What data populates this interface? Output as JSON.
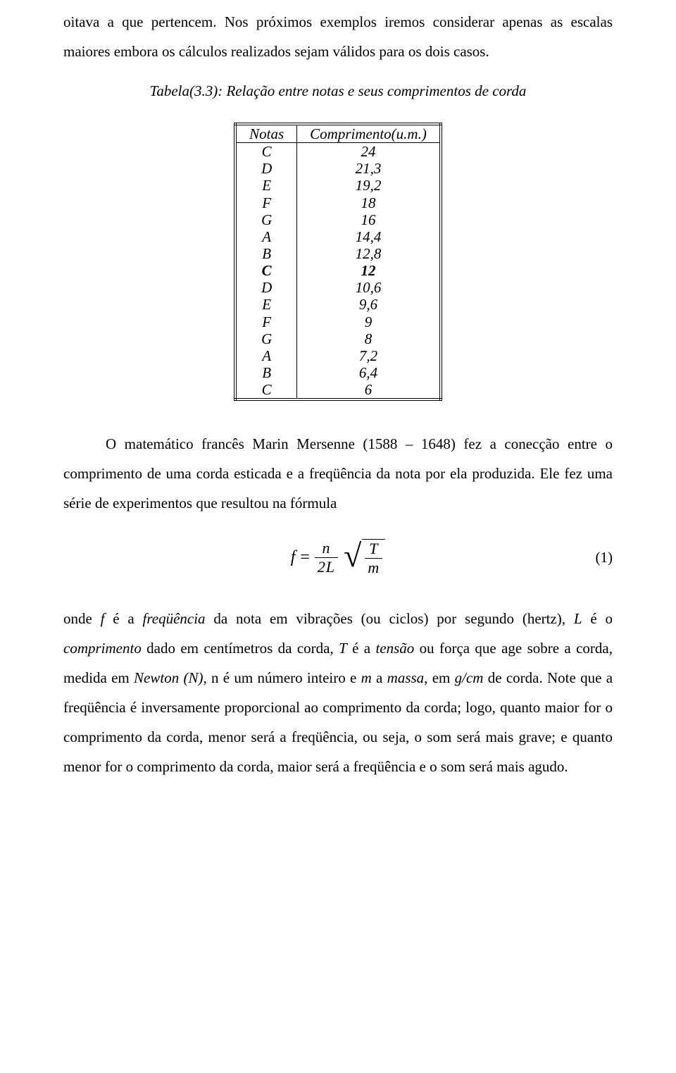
{
  "para1": "oitava a que pertencem. Nos próximos exemplos iremos considerar apenas as escalas maiores embora os cálculos realizados sejam válidos para os dois casos.",
  "table": {
    "caption_prefix": "Tabela(3.3):",
    "caption_rest": " Relação entre notas e seus comprimentos de corda",
    "columns": [
      "Notas",
      "Comprimento(u.m.)"
    ],
    "rows": [
      {
        "note": "C",
        "len": "24",
        "bold": false
      },
      {
        "note": "D",
        "len": "21,3",
        "bold": false
      },
      {
        "note": "E",
        "len": "19,2",
        "bold": false
      },
      {
        "note": "F",
        "len": "18",
        "bold": false
      },
      {
        "note": "G",
        "len": "16",
        "bold": false
      },
      {
        "note": "A",
        "len": "14,4",
        "bold": false
      },
      {
        "note": "B",
        "len": "12,8",
        "bold": false
      },
      {
        "note": "C",
        "len": "12",
        "bold": true
      },
      {
        "note": "D",
        "len": "10,6",
        "bold": false
      },
      {
        "note": "E",
        "len": "9,6",
        "bold": false
      },
      {
        "note": "F",
        "len": "9",
        "bold": false
      },
      {
        "note": "G",
        "len": "8",
        "bold": false
      },
      {
        "note": "A",
        "len": "7,2",
        "bold": false
      },
      {
        "note": "B",
        "len": "6,4",
        "bold": false
      },
      {
        "note": "C",
        "len": "6",
        "bold": false
      }
    ]
  },
  "para2": "O matemático francês Marin Mersenne (1588 – 1648) fez a conecção entre o comprimento de uma corda esticada e a freqüência da nota por ela produzida. Ele fez uma série de experimentos que resultou na fórmula",
  "equation": {
    "lhs": "f",
    "eq": "=",
    "frac1_num": "n",
    "frac1_den": "2L",
    "frac2_num": "T",
    "frac2_den": "m",
    "number": "(1)"
  },
  "para3": {
    "t0": "onde ",
    "i1": "f",
    "t1": " é a ",
    "i2": "freqüência",
    "t2": " da nota em vibrações (ou ciclos) por segundo (hertz), ",
    "i3": "L",
    "t3": " é o ",
    "i4": "comprimento",
    "t4": " dado em centímetros da corda, ",
    "i5": "T",
    "t5": " é a ",
    "i6": "tensão",
    "t6": " ou força que age sobre a corda, medida em ",
    "i7": "Newton (N),",
    "t7": " n é um número inteiro e ",
    "i8": "m",
    "t8": " a ",
    "i9": "massa",
    "t9": ", em ",
    "i10": "g/cm",
    "t10": " de corda. Note que a freqüência é inversamente proporcional ao comprimento da corda; logo, quanto maior for o comprimento da corda, menor será a freqüência, ou seja, o som será mais grave; e quanto menor for o comprimento da corda, maior será a freqüência e o som será mais agudo."
  }
}
